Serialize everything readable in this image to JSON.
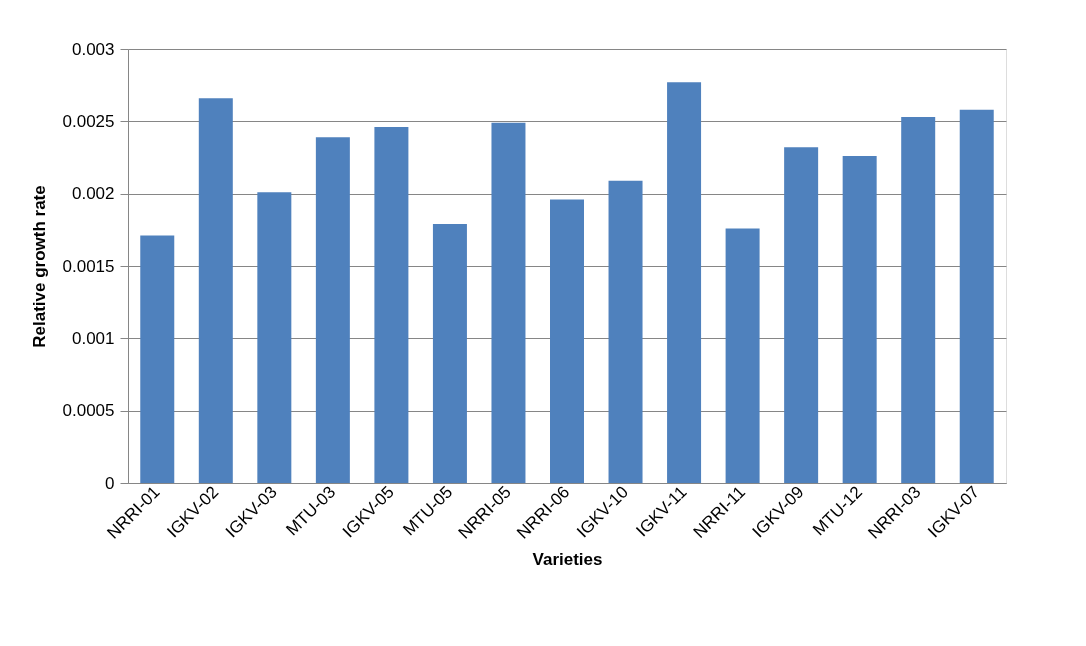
{
  "chart_data": {
    "type": "bar",
    "xlabel": "Varieties",
    "ylabel": "Relative growth rate",
    "categories": [
      "NRRI-01",
      "IGKV-02",
      "IGKV-03",
      "MTU-03",
      "IGKV-05",
      "MTU-05",
      "NRRI-05",
      "NRRI-06",
      "IGKV-10",
      "IGKV-11",
      "NRRI-11",
      "IGKV-09",
      "MTU-12",
      "NRRI-03",
      "IGKV-07"
    ],
    "values": [
      0.00171,
      0.00266,
      0.00201,
      0.00239,
      0.00246,
      0.00179,
      0.00249,
      0.00196,
      0.00209,
      0.00277,
      0.00176,
      0.00232,
      0.00226,
      0.00253,
      0.00258
    ],
    "color": "#4f81bd",
    "ylim": [
      0,
      0.003
    ],
    "yticks": [
      0,
      0.0005,
      0.001,
      0.0015,
      0.002,
      0.0025,
      0.003
    ],
    "grid": "y"
  }
}
